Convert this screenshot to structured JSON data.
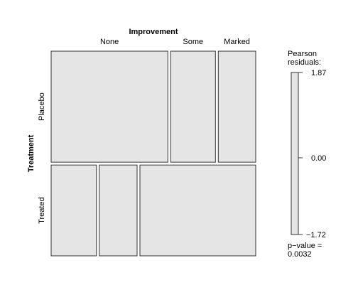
{
  "chart_data": {
    "type": "mosaic",
    "title": "",
    "column_variable": "Improvement",
    "row_variable": "Treatment",
    "columns": [
      "None",
      "Some",
      "Marked"
    ],
    "rows": [
      "Placebo",
      "Treated"
    ],
    "row_proportions": [
      0.55,
      0.45
    ],
    "cell_proportions_within_row": [
      [
        0.595,
        0.228,
        0.191
      ],
      [
        0.228,
        0.19,
        0.582
      ]
    ],
    "tile_fill_color": "#e5e5e5",
    "legend": {
      "title_line1": "Pearson",
      "title_line2": "residuals:",
      "max": 1.87,
      "mid": 0.0,
      "min": -1.72,
      "max_label": "1.87",
      "mid_label": "0.00",
      "min_label": "−1.72",
      "placement": "right"
    },
    "pvalue_line1": "p−value =",
    "pvalue_line2": "0.0032"
  }
}
